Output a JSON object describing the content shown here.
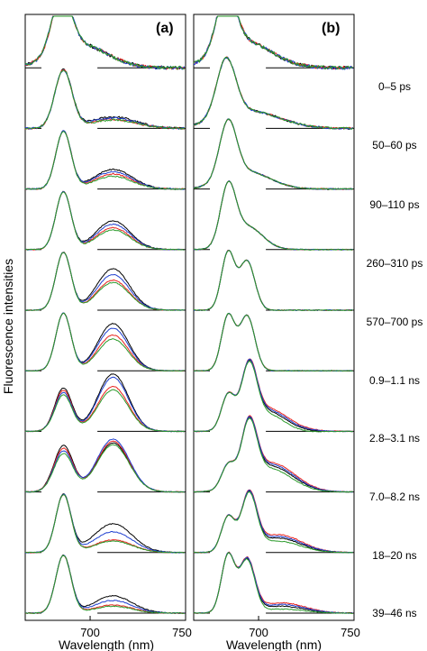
{
  "y_axis_label": "Fluorescence intensities",
  "panels": [
    {
      "label": "(a)",
      "xlabel": "Wavelength (nm)",
      "ticks": [
        "700",
        "750"
      ]
    },
    {
      "label": "(b)",
      "xlabel": "Wavelength (nm)",
      "ticks": [
        "700",
        "750"
      ]
    }
  ],
  "time_windows": [
    "0–5 ps",
    "50–60 ps",
    "90–110 ps",
    "260–310 ps",
    "570–700 ps",
    "0.9–1.1 ns",
    "2.8–3.1 ns",
    "7.0–8.2 ns",
    "18–20 ns",
    "39–46 ns"
  ],
  "colors": {
    "black": "#000000",
    "red": "#e8231e",
    "blue": "#1f3fd0",
    "green": "#2a9a2a"
  },
  "chart_data": [
    {
      "type": "line",
      "title": "(a)",
      "xlabel": "Wavelength (nm)",
      "ylabel": "Fluorescence intensities",
      "xlim": [
        666,
        750
      ],
      "x_ticks": [
        700,
        750
      ],
      "series_colors": [
        "black",
        "red",
        "blue",
        "green"
      ],
      "rows": [
        {
          "time": "0–5 ps",
          "peaks": [
            [
              0,
              685,
              1.0,
              5
            ],
            [
              0,
              695,
              0.4,
              14
            ]
          ],
          "noise": 0.06,
          "h2": [
            0,
            0,
            0,
            0
          ]
        },
        {
          "time": "50–60 ps",
          "peaks": [
            [
              0,
              686,
              1.0,
              4.5
            ],
            [
              0,
              712,
              0.18,
              12
            ]
          ],
          "noise": 0.035,
          "h2": [
            0.2,
            0.16,
            0.18,
            0.15
          ]
        },
        {
          "time": "90–110 ps",
          "peaks": [
            [
              0,
              686,
              1.0,
              4
            ],
            [
              0,
              712,
              0.32,
              10
            ]
          ],
          "noise": 0.02,
          "h2": [
            0.34,
            0.26,
            0.3,
            0.22
          ]
        },
        {
          "time": "260–310 ps",
          "peaks": [
            [
              0,
              686,
              1.0,
              4
            ],
            [
              0,
              712,
              0.45,
              9
            ]
          ],
          "noise": 0.015,
          "h2": [
            0.5,
            0.38,
            0.44,
            0.34
          ]
        },
        {
          "time": "570–700 ps",
          "peaks": [
            [
              0,
              686,
              1.0,
              4
            ],
            [
              0,
              712,
              0.6,
              8.5
            ]
          ],
          "noise": 0.012,
          "h2": [
            0.72,
            0.52,
            0.62,
            0.48
          ]
        },
        {
          "time": "0.9–1.1 ns",
          "peaks": [
            [
              0,
              686,
              1.0,
              4
            ],
            [
              0,
              712,
              0.7,
              8
            ]
          ],
          "noise": 0.012,
          "h2": [
            0.82,
            0.62,
            0.74,
            0.55
          ]
        },
        {
          "time": "2.8–3.1 ns",
          "peaks": [
            [
              0,
              686,
              0.75,
              4.5
            ],
            [
              0,
              712,
              0.95,
              8
            ]
          ],
          "noise": 0.012,
          "h2": [
            1.0,
            0.78,
            0.94,
            0.72
          ]
        },
        {
          "time": "7.0–8.2 ns",
          "peaks": [
            [
              0,
              686,
              0.8,
              5
            ],
            [
              0,
              712,
              0.9,
              8.5
            ]
          ],
          "noise": 0.012,
          "h2": [
            0.85,
            0.88,
            0.92,
            0.82
          ]
        },
        {
          "time": "18–20 ns",
          "peaks": [
            [
              0,
              686,
              1.0,
              4
            ],
            [
              0,
              712,
              0.4,
              10
            ]
          ],
          "noise": 0.014,
          "h2": [
            0.5,
            0.22,
            0.36,
            0.2
          ]
        },
        {
          "time": "39–46 ns",
          "peaks": [
            [
              0,
              686,
              1.0,
              4
            ],
            [
              0,
              712,
              0.24,
              10
            ]
          ],
          "noise": 0.015,
          "h2": [
            0.3,
            0.14,
            0.22,
            0.12
          ]
        }
      ]
    },
    {
      "type": "line",
      "title": "(b)",
      "xlabel": "Wavelength (nm)",
      "ylabel": "Fluorescence intensities",
      "xlim": [
        666,
        750
      ],
      "x_ticks": [
        700,
        750
      ],
      "series_colors": [
        "black",
        "red",
        "blue",
        "green"
      ],
      "rows": [
        {
          "time": "0–5 ps",
          "peaks": [
            [
              0,
              683,
              1.0,
              5
            ],
            [
              0,
              693,
              0.45,
              14
            ]
          ],
          "noise": 0.06,
          "h2": [
            0,
            0,
            0,
            0
          ]
        },
        {
          "time": "50–60 ps",
          "peaks": [
            [
              0,
              683,
              1.0,
              5
            ],
            [
              0,
              695,
              0.3,
              16
            ]
          ],
          "noise": 0.035,
          "h2": [
            0,
            0,
            0,
            0
          ]
        },
        {
          "time": "90–110 ps",
          "peaks": [
            [
              0,
              684,
              1.0,
              4.5
            ],
            [
              0,
              694,
              0.3,
              12
            ]
          ],
          "noise": 0.02,
          "h2": [
            0,
            0,
            0,
            0
          ]
        },
        {
          "time": "260–310 ps",
          "peaks": [
            [
              0,
              684,
              1.0,
              4
            ],
            [
              0,
              694,
              0.4,
              8
            ]
          ],
          "noise": 0.015,
          "h2": [
            0,
            0,
            0,
            0
          ]
        },
        {
          "time": "570–700 ps",
          "peaks": [
            [
              0,
              684,
              1.0,
              3.5
            ],
            [
              0,
              694,
              0.85,
              4
            ]
          ],
          "noise": 0.012,
          "h2": [
            0,
            0,
            0,
            0
          ]
        },
        {
          "time": "0.9–1.1 ns",
          "peaks": [
            [
              0,
              684,
              0.95,
              3.5
            ],
            [
              0,
              694,
              0.95,
              4
            ]
          ],
          "noise": 0.012,
          "h2": [
            0,
            0,
            0,
            0
          ]
        },
        {
          "time": "2.8–3.1 ns",
          "peaks": [
            [
              0,
              684,
              0.6,
              3.5
            ],
            [
              0,
              695,
              1.0,
              4
            ],
            [
              0,
              704,
              0.35,
              10
            ]
          ],
          "noise": 0.012,
          "h2": [
            0,
            0,
            0,
            0
          ]
        },
        {
          "time": "7.0–8.2 ns",
          "peaks": [
            [
              0,
              684,
              0.4,
              3.5
            ],
            [
              0,
              695,
              1.0,
              4
            ],
            [
              0,
              706,
              0.45,
              12
            ]
          ],
          "noise": 0.012,
          "h2": [
            0,
            0,
            0,
            0
          ]
        },
        {
          "time": "18–20 ns",
          "peaks": [
            [
              0,
              684,
              0.6,
              3.5
            ],
            [
              0,
              695,
              0.95,
              4
            ],
            [
              0,
              710,
              0.25,
              12
            ]
          ],
          "noise": 0.014,
          "h2": [
            0,
            0,
            0,
            0
          ]
        },
        {
          "time": "39–46 ns",
          "peaks": [
            [
              0,
              684,
              1.0,
              3.5
            ],
            [
              0,
              694,
              0.9,
              4
            ],
            [
              0,
              712,
              0.12,
              12
            ]
          ],
          "noise": 0.015,
          "h2": [
            0,
            0,
            0,
            0
          ]
        }
      ]
    }
  ]
}
